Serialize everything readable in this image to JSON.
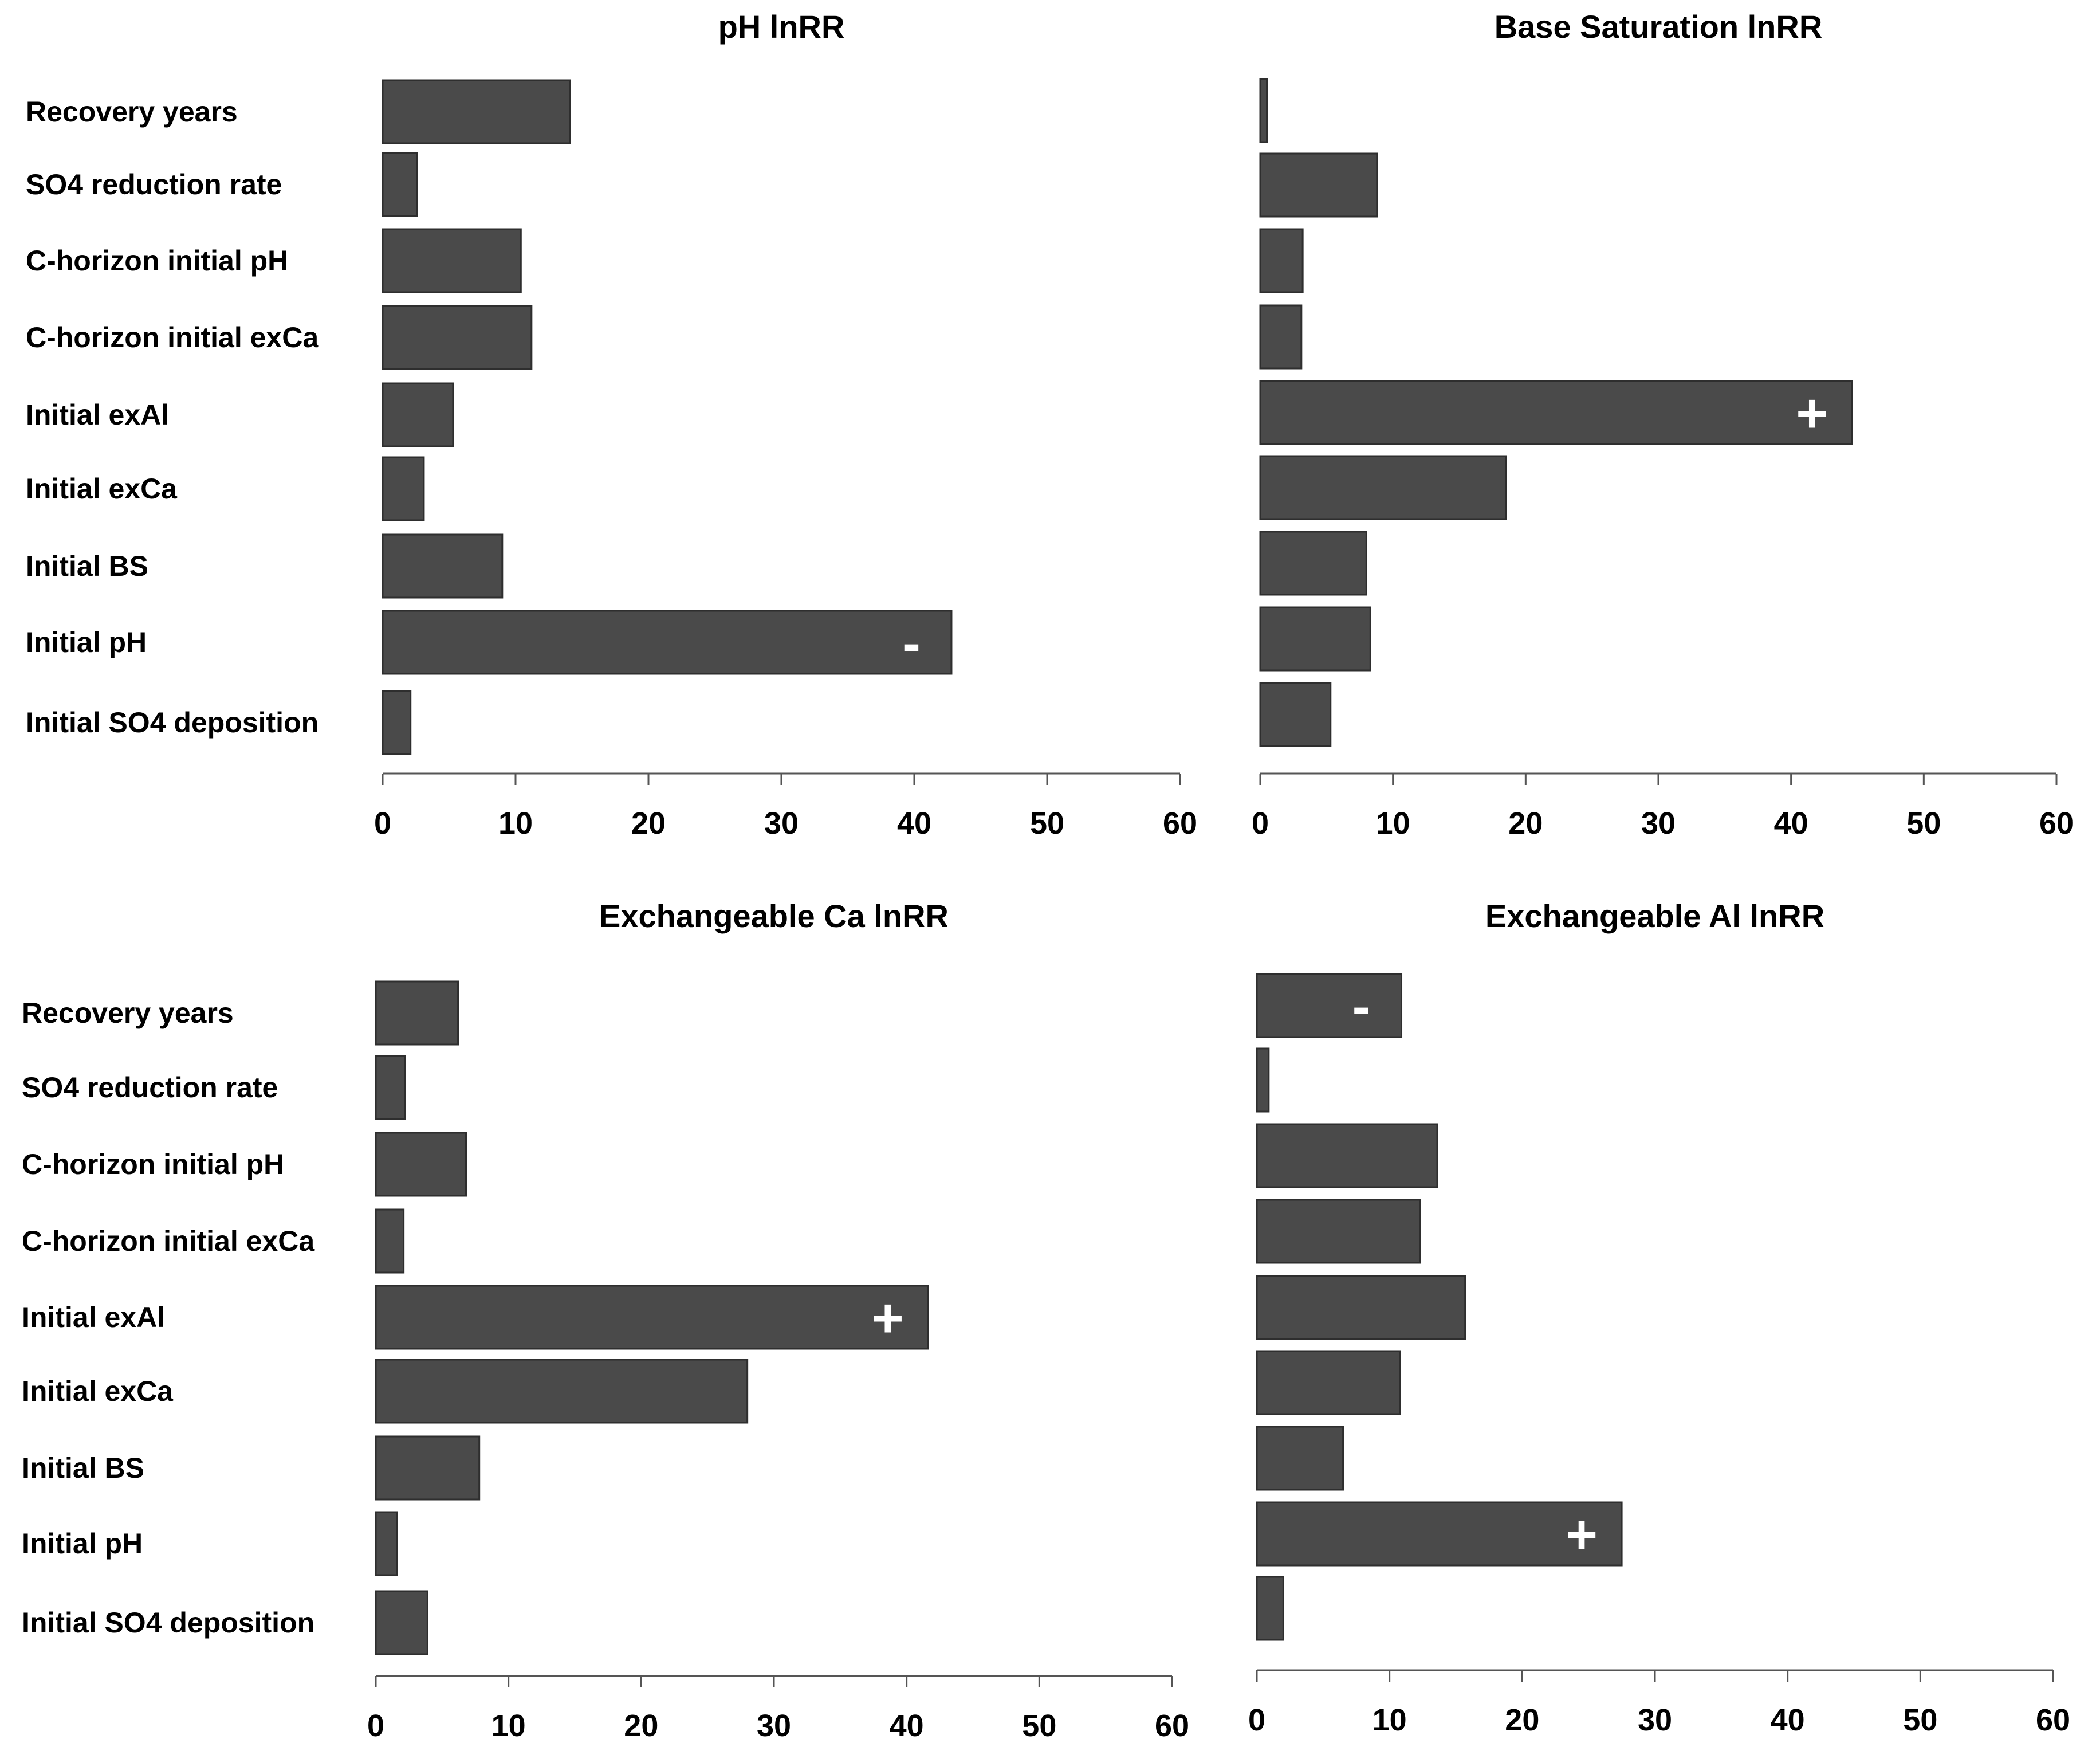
{
  "chart_data": [
    {
      "type": "bar",
      "orientation": "horizontal",
      "title": "pH lnRR",
      "categories": [
        "Recovery years",
        "SO4 reduction rate",
        "C-horizon initial pH",
        "C-horizon initial exCa",
        "Initial exAl",
        "Initial exCa",
        "Initial BS",
        "Initial pH",
        "Initial SO4 deposition"
      ],
      "values": [
        14.1,
        2.6,
        10.4,
        11.2,
        5.3,
        3.1,
        9.0,
        42.8,
        2.1
      ],
      "annotations": [
        "",
        "",
        "",
        "",
        "",
        "",
        "",
        "-",
        ""
      ],
      "xlim": [
        0,
        60
      ],
      "xticks": [
        "0",
        "10",
        "20",
        "30",
        "40",
        "50",
        "60"
      ],
      "show_category_labels": true
    },
    {
      "type": "bar",
      "orientation": "horizontal",
      "title": "Base Saturation lnRR",
      "categories": [
        "Recovery years",
        "SO4 reduction rate",
        "C-horizon initial pH",
        "C-horizon initial exCa",
        "Initial exAl",
        "Initial exCa",
        "Initial BS",
        "Initial pH",
        "Initial SO4 deposition"
      ],
      "values": [
        0.5,
        8.8,
        3.2,
        3.1,
        44.6,
        18.5,
        8.0,
        8.3,
        5.3
      ],
      "annotations": [
        "",
        "",
        "",
        "",
        "+",
        "",
        "",
        "",
        ""
      ],
      "xlim": [
        0,
        60
      ],
      "xticks": [
        "0",
        "10",
        "20",
        "30",
        "40",
        "50",
        "60"
      ],
      "show_category_labels": false
    },
    {
      "type": "bar",
      "orientation": "horizontal",
      "title": "Exchangeable Ca lnRR",
      "categories": [
        "Recovery years",
        "SO4 reduction rate",
        "C-horizon initial pH",
        "C-horizon initial exCa",
        "Initial exAl",
        "Initial exCa",
        "Initial BS",
        "Initial pH",
        "Initial SO4 deposition"
      ],
      "values": [
        6.2,
        2.2,
        6.8,
        2.1,
        41.6,
        28.0,
        7.8,
        1.6,
        3.9
      ],
      "annotations": [
        "",
        "",
        "",
        "",
        "+",
        "",
        "",
        "",
        ""
      ],
      "xlim": [
        0,
        60
      ],
      "xticks": [
        "0",
        "10",
        "20",
        "30",
        "40",
        "50",
        "60"
      ],
      "show_category_labels": true
    },
    {
      "type": "bar",
      "orientation": "horizontal",
      "title": "Exchangeable Al lnRR",
      "categories": [
        "Recovery years",
        "SO4 reduction rate",
        "C-horizon initial pH",
        "C-horizon initial exCa",
        "Initial exAl",
        "Initial exCa",
        "Initial BS",
        "Initial pH",
        "Initial SO4 deposition"
      ],
      "values": [
        10.9,
        0.9,
        13.6,
        12.3,
        15.7,
        10.8,
        6.5,
        27.5,
        2.0
      ],
      "annotations": [
        "-",
        "",
        "",
        "",
        "",
        "",
        "",
        "+",
        ""
      ],
      "xlim": [
        0,
        60
      ],
      "xticks": [
        "0",
        "10",
        "20",
        "30",
        "40",
        "50",
        "60"
      ],
      "show_category_labels": false
    }
  ],
  "colors": {
    "bar_fill": "#4a4a4a",
    "bar_stroke": "#2e2e2e",
    "axis": "#555555",
    "marker": "#ffffff"
  }
}
